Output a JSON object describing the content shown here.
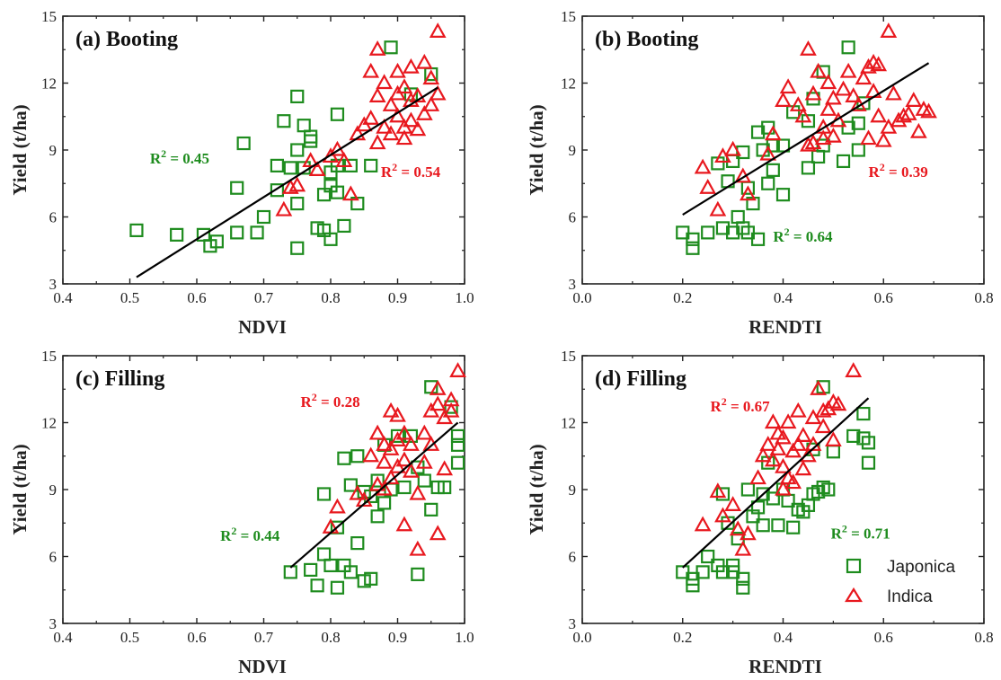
{
  "colors": {
    "japonica": "#1e8c1e",
    "indica": "#e8181e",
    "fit": "#000000",
    "axis": "#222222"
  },
  "legend": [
    {
      "label": "Japonica",
      "series": "japonica",
      "marker": "square"
    },
    {
      "label": "Indica",
      "series": "indica",
      "marker": "triangle"
    }
  ],
  "chart_data": [
    {
      "id": "a",
      "type": "scatter",
      "title": "(a) Booting",
      "xlabel": "NDVI",
      "ylabel": "Yield (t/ha)",
      "xlim": [
        0.4,
        1.0
      ],
      "ylim": [
        3,
        15
      ],
      "xticks": [
        0.4,
        0.5,
        0.6,
        0.7,
        0.8,
        0.9,
        1.0
      ],
      "xtick_labels": [
        "0.4",
        "0.5",
        "0.6",
        "0.7",
        "0.8",
        "0.9",
        "1.0"
      ],
      "yticks": [
        3,
        6,
        9,
        12,
        15
      ],
      "ytick_labels": [
        "3",
        "6",
        "9",
        "12",
        "15"
      ],
      "fit_line": {
        "x": [
          0.51,
          0.96
        ],
        "y": [
          3.3,
          11.8
        ]
      },
      "annotations": [
        {
          "series": "japonica",
          "r2": "0.45",
          "x": 0.53,
          "y": 8.4,
          "anchor": "start"
        },
        {
          "series": "indica",
          "r2": "0.54",
          "x": 0.875,
          "y": 7.8,
          "anchor": "start"
        }
      ],
      "series": [
        {
          "name": "Japonica",
          "key": "japonica",
          "marker": "square",
          "x": [
            0.51,
            0.57,
            0.61,
            0.62,
            0.63,
            0.66,
            0.66,
            0.67,
            0.69,
            0.7,
            0.72,
            0.72,
            0.73,
            0.74,
            0.75,
            0.75,
            0.75,
            0.75,
            0.76,
            0.76,
            0.77,
            0.77,
            0.78,
            0.79,
            0.79,
            0.8,
            0.8,
            0.8,
            0.81,
            0.81,
            0.81,
            0.82,
            0.83,
            0.84,
            0.86,
            0.89,
            0.92,
            0.95
          ],
          "y": [
            5.4,
            5.2,
            5.2,
            4.7,
            4.9,
            5.3,
            7.3,
            9.3,
            5.3,
            6.0,
            7.2,
            8.3,
            10.3,
            8.2,
            4.6,
            6.6,
            9.0,
            11.4,
            8.2,
            10.1,
            9.4,
            9.6,
            5.5,
            5.4,
            7.0,
            5.0,
            7.4,
            8.0,
            7.1,
            8.3,
            10.6,
            5.6,
            8.3,
            6.6,
            8.3,
            13.6,
            11.5,
            12.4
          ]
        },
        {
          "name": "Indica",
          "key": "indica",
          "marker": "triangle",
          "x": [
            0.73,
            0.74,
            0.75,
            0.77,
            0.78,
            0.8,
            0.81,
            0.82,
            0.83,
            0.84,
            0.85,
            0.86,
            0.86,
            0.87,
            0.87,
            0.87,
            0.88,
            0.88,
            0.89,
            0.89,
            0.9,
            0.9,
            0.9,
            0.91,
            0.91,
            0.91,
            0.92,
            0.92,
            0.92,
            0.93,
            0.93,
            0.94,
            0.94,
            0.95,
            0.95,
            0.96,
            0.96
          ],
          "y": [
            6.3,
            7.3,
            7.4,
            8.5,
            8.1,
            8.7,
            9.0,
            8.5,
            7.0,
            9.7,
            10.1,
            10.4,
            12.5,
            9.3,
            11.4,
            13.5,
            10.0,
            12.0,
            9.7,
            11.0,
            10.5,
            11.5,
            12.5,
            9.5,
            11.8,
            10.0,
            10.3,
            11.2,
            12.7,
            9.9,
            11.4,
            10.6,
            12.9,
            11.0,
            12.2,
            14.3,
            11.5
          ]
        }
      ]
    },
    {
      "id": "b",
      "type": "scatter",
      "title": "(b) Booting",
      "xlabel": "RENDTI",
      "ylabel": "Yield (t/ha)",
      "xlim": [
        0.0,
        0.8
      ],
      "ylim": [
        3,
        15
      ],
      "xticks": [
        0.0,
        0.2,
        0.4,
        0.6,
        0.8
      ],
      "xtick_labels": [
        "0.0",
        "0.2",
        "0.4",
        "0.6",
        "0.8"
      ],
      "yticks": [
        3,
        6,
        9,
        12,
        15
      ],
      "ytick_labels": [
        "3",
        "6",
        "9",
        "12",
        "15"
      ],
      "fit_line": {
        "x": [
          0.2,
          0.69
        ],
        "y": [
          6.1,
          12.9
        ]
      },
      "annotations": [
        {
          "series": "indica",
          "r2": "0.39",
          "x": 0.57,
          "y": 7.8,
          "anchor": "start"
        },
        {
          "series": "japonica",
          "r2": "0.64",
          "x": 0.38,
          "y": 4.9,
          "anchor": "start"
        }
      ],
      "series": [
        {
          "name": "Japonica",
          "key": "japonica",
          "marker": "square",
          "x": [
            0.2,
            0.22,
            0.22,
            0.25,
            0.27,
            0.28,
            0.29,
            0.3,
            0.3,
            0.31,
            0.32,
            0.32,
            0.33,
            0.33,
            0.34,
            0.35,
            0.35,
            0.36,
            0.37,
            0.37,
            0.38,
            0.38,
            0.4,
            0.4,
            0.42,
            0.45,
            0.45,
            0.46,
            0.47,
            0.48,
            0.48,
            0.52,
            0.53,
            0.53,
            0.55,
            0.55,
            0.56
          ],
          "y": [
            5.3,
            4.6,
            5.0,
            5.3,
            8.4,
            5.5,
            7.6,
            5.3,
            8.5,
            6.0,
            5.5,
            8.9,
            5.3,
            7.3,
            6.6,
            5.0,
            9.8,
            9.0,
            7.5,
            10.0,
            8.1,
            9.2,
            7.0,
            9.2,
            10.7,
            8.2,
            10.3,
            11.3,
            8.7,
            9.2,
            12.5,
            8.5,
            13.6,
            10.0,
            9.0,
            10.2,
            11.1
          ]
        },
        {
          "name": "Indica",
          "key": "indica",
          "marker": "triangle",
          "x": [
            0.24,
            0.25,
            0.27,
            0.28,
            0.3,
            0.32,
            0.33,
            0.37,
            0.38,
            0.4,
            0.41,
            0.43,
            0.44,
            0.45,
            0.45,
            0.46,
            0.46,
            0.47,
            0.48,
            0.48,
            0.49,
            0.49,
            0.5,
            0.5,
            0.51,
            0.52,
            0.53,
            0.54,
            0.55,
            0.56,
            0.57,
            0.57,
            0.58,
            0.58,
            0.59,
            0.59,
            0.6,
            0.61,
            0.61,
            0.62,
            0.63,
            0.64,
            0.65,
            0.66,
            0.67,
            0.68,
            0.69
          ],
          "y": [
            8.2,
            7.3,
            6.3,
            8.7,
            9.0,
            7.8,
            7.0,
            8.8,
            9.7,
            11.2,
            11.8,
            11.0,
            10.5,
            13.5,
            9.2,
            11.5,
            9.3,
            12.5,
            10.0,
            9.5,
            10.8,
            12.0,
            11.3,
            9.6,
            10.3,
            11.7,
            12.5,
            11.4,
            11.0,
            12.2,
            9.5,
            12.7,
            11.6,
            12.9,
            10.5,
            12.8,
            9.4,
            14.3,
            10.0,
            11.5,
            10.3,
            10.5,
            10.6,
            11.2,
            9.8,
            10.8,
            10.7
          ]
        }
      ]
    },
    {
      "id": "c",
      "type": "scatter",
      "title": "(c) Filling",
      "xlabel": "NDVI",
      "ylabel": "Yield (t/ha)",
      "xlim": [
        0.4,
        1.0
      ],
      "ylim": [
        3,
        15
      ],
      "xticks": [
        0.4,
        0.5,
        0.6,
        0.7,
        0.8,
        0.9,
        1.0
      ],
      "xtick_labels": [
        "0.4",
        "0.5",
        "0.6",
        "0.7",
        "0.8",
        "0.9",
        "1.0"
      ],
      "yticks": [
        3,
        6,
        9,
        12,
        15
      ],
      "ytick_labels": [
        "3",
        "6",
        "9",
        "12",
        "15"
      ],
      "fit_line": {
        "x": [
          0.74,
          0.99
        ],
        "y": [
          5.5,
          12.0
        ]
      },
      "annotations": [
        {
          "series": "indica",
          "r2": "0.28",
          "x": 0.755,
          "y": 12.7,
          "anchor": "start"
        },
        {
          "series": "japonica",
          "r2": "0.44",
          "x": 0.635,
          "y": 6.7,
          "anchor": "start"
        }
      ],
      "series": [
        {
          "name": "Japonica",
          "key": "japonica",
          "marker": "square",
          "x": [
            0.74,
            0.77,
            0.78,
            0.79,
            0.79,
            0.8,
            0.81,
            0.81,
            0.82,
            0.82,
            0.83,
            0.83,
            0.84,
            0.84,
            0.85,
            0.85,
            0.86,
            0.86,
            0.87,
            0.87,
            0.88,
            0.88,
            0.89,
            0.9,
            0.91,
            0.92,
            0.93,
            0.93,
            0.94,
            0.95,
            0.95,
            0.96,
            0.97,
            0.98,
            0.99,
            0.99,
            0.99
          ],
          "y": [
            5.3,
            5.4,
            4.7,
            6.1,
            8.8,
            5.6,
            4.6,
            7.3,
            5.6,
            10.4,
            5.3,
            9.2,
            6.6,
            10.5,
            4.9,
            8.9,
            5.0,
            8.7,
            7.8,
            9.4,
            8.4,
            11.0,
            9.0,
            11.4,
            9.1,
            11.4,
            5.2,
            10.0,
            9.4,
            13.6,
            8.1,
            9.1,
            9.1,
            12.7,
            10.2,
            11.0,
            11.4
          ]
        },
        {
          "name": "Indica",
          "key": "indica",
          "marker": "triangle",
          "x": [
            0.8,
            0.81,
            0.84,
            0.85,
            0.86,
            0.87,
            0.87,
            0.88,
            0.88,
            0.88,
            0.89,
            0.89,
            0.89,
            0.9,
            0.9,
            0.9,
            0.91,
            0.91,
            0.91,
            0.92,
            0.92,
            0.93,
            0.93,
            0.94,
            0.94,
            0.95,
            0.95,
            0.96,
            0.96,
            0.96,
            0.97,
            0.97,
            0.98,
            0.98,
            0.99
          ],
          "y": [
            7.3,
            8.2,
            8.8,
            8.5,
            10.5,
            9.2,
            11.5,
            10.2,
            11.0,
            9.0,
            12.5,
            9.5,
            10.8,
            12.3,
            10.0,
            11.2,
            7.4,
            10.3,
            11.5,
            11.0,
            9.8,
            6.3,
            8.8,
            11.5,
            10.2,
            12.5,
            11.0,
            13.5,
            7.0,
            12.8,
            12.2,
            9.9,
            12.5,
            13.0,
            14.3
          ]
        }
      ]
    },
    {
      "id": "d",
      "type": "scatter",
      "title": "(d) Filling",
      "xlabel": "RENDTI",
      "ylabel": "Yield (t/ha)",
      "xlim": [
        0.0,
        0.8
      ],
      "ylim": [
        3,
        15
      ],
      "xticks": [
        0.0,
        0.2,
        0.4,
        0.6,
        0.8
      ],
      "xtick_labels": [
        "0.0",
        "0.2",
        "0.4",
        "0.6",
        "0.8"
      ],
      "yticks": [
        3,
        6,
        9,
        12,
        15
      ],
      "ytick_labels": [
        "3",
        "6",
        "9",
        "12",
        "15"
      ],
      "fit_line": {
        "x": [
          0.2,
          0.57
        ],
        "y": [
          5.5,
          13.1
        ]
      },
      "annotations": [
        {
          "series": "indica",
          "r2": "0.67",
          "x": 0.255,
          "y": 12.5,
          "anchor": "start"
        },
        {
          "series": "japonica",
          "r2": "0.71",
          "x": 0.495,
          "y": 6.8,
          "anchor": "start"
        }
      ],
      "series": [
        {
          "name": "Japonica",
          "key": "japonica",
          "marker": "square",
          "x": [
            0.2,
            0.22,
            0.22,
            0.24,
            0.25,
            0.27,
            0.28,
            0.28,
            0.29,
            0.3,
            0.3,
            0.31,
            0.32,
            0.32,
            0.33,
            0.34,
            0.35,
            0.36,
            0.36,
            0.37,
            0.38,
            0.39,
            0.4,
            0.41,
            0.42,
            0.43,
            0.44,
            0.45,
            0.46,
            0.46,
            0.47,
            0.48,
            0.48,
            0.49,
            0.5,
            0.54,
            0.56,
            0.56,
            0.57,
            0.57
          ],
          "y": [
            5.3,
            4.7,
            5.0,
            5.3,
            6.0,
            5.6,
            5.3,
            8.8,
            7.5,
            5.3,
            5.6,
            6.8,
            4.6,
            5.0,
            9.0,
            7.8,
            8.2,
            8.8,
            7.4,
            10.2,
            8.6,
            7.4,
            9.0,
            8.5,
            7.3,
            8.1,
            8.0,
            8.3,
            8.8,
            10.8,
            8.9,
            9.1,
            13.6,
            9.0,
            10.7,
            11.4,
            11.3,
            12.4,
            10.2,
            11.1
          ]
        },
        {
          "name": "Indica",
          "key": "indica",
          "marker": "triangle",
          "x": [
            0.24,
            0.27,
            0.28,
            0.3,
            0.31,
            0.32,
            0.33,
            0.35,
            0.36,
            0.37,
            0.38,
            0.38,
            0.39,
            0.39,
            0.4,
            0.4,
            0.4,
            0.41,
            0.41,
            0.42,
            0.42,
            0.43,
            0.43,
            0.44,
            0.44,
            0.45,
            0.46,
            0.46,
            0.47,
            0.48,
            0.48,
            0.49,
            0.5,
            0.5,
            0.51,
            0.54
          ],
          "y": [
            7.4,
            8.9,
            7.8,
            8.3,
            7.2,
            6.3,
            7.0,
            9.5,
            10.5,
            11.0,
            10.3,
            12.0,
            10.8,
            11.5,
            9.0,
            10.0,
            11.3,
            9.5,
            12.0,
            9.3,
            10.7,
            11.0,
            12.5,
            9.9,
            11.4,
            10.5,
            12.2,
            11.0,
            13.5,
            12.5,
            11.8,
            12.6,
            11.2,
            12.9,
            12.8,
            14.3
          ]
        }
      ]
    }
  ]
}
